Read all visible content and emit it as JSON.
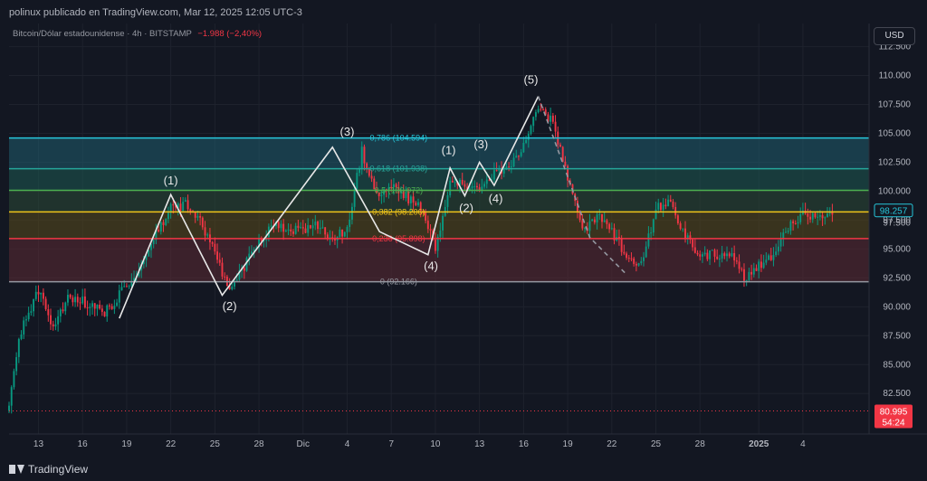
{
  "header": {
    "attribution": "polinux publicado en TradingView.com, Mar 12, 2025 12:05 UTC-3"
  },
  "symbol": {
    "name": "Bitcoin/Dólar estadounidense · 4h · BITSTAMP",
    "change": "−1.988 (−2,40%)"
  },
  "currency_button": "USD",
  "footer": {
    "brand": "TradingView"
  },
  "colors": {
    "background": "#131722",
    "up": "#089981",
    "down": "#f23645",
    "fib_0786": "#26c6da",
    "fib_0618": "#26a69a",
    "fib_05": "#4caf50",
    "fib_0382": "#f0c419",
    "fib_0236": "#f23645",
    "fib_0": "#9598a1"
  },
  "chart_data": {
    "type": "candlestick",
    "y_axis": {
      "range": [
        79000,
        114500
      ],
      "ticks": [
        "112.500",
        "110.000",
        "107.500",
        "105.000",
        "102.500",
        "100.000",
        "97.500",
        "95.000",
        "92.500",
        "90.000",
        "87.500",
        "85.000",
        "82.500"
      ],
      "tick_values": [
        112500,
        110000,
        107500,
        105000,
        102500,
        100000,
        97500,
        95000,
        92500,
        90000,
        87500,
        85000,
        82500
      ]
    },
    "x_axis": {
      "range": [
        0,
        58.5
      ],
      "ticks": [
        {
          "label": "13",
          "x": 2
        },
        {
          "label": "16",
          "x": 5
        },
        {
          "label": "19",
          "x": 8
        },
        {
          "label": "22",
          "x": 11
        },
        {
          "label": "25",
          "x": 14
        },
        {
          "label": "28",
          "x": 17
        },
        {
          "label": "Dic",
          "x": 20
        },
        {
          "label": "4",
          "x": 23
        },
        {
          "label": "7",
          "x": 26
        },
        {
          "label": "10",
          "x": 29
        },
        {
          "label": "13",
          "x": 32
        },
        {
          "label": "16",
          "x": 35
        },
        {
          "label": "19",
          "x": 38
        },
        {
          "label": "22",
          "x": 41
        },
        {
          "label": "25",
          "x": 44
        },
        {
          "label": "28",
          "x": 47
        },
        {
          "label": "2025",
          "x": 51
        },
        {
          "label": "4",
          "x": 54
        }
      ]
    },
    "price_labels": [
      {
        "value": "98.257",
        "price": 98257,
        "kind": "current"
      },
      {
        "value": "97.500",
        "price": 97500,
        "kind": "tick"
      },
      {
        "value": "80.995",
        "price": 80995,
        "kind": "low"
      },
      {
        "value": "54:24",
        "price": 80995,
        "kind": "countdown"
      }
    ],
    "fib_levels": [
      {
        "label": "0,786 (104.594)",
        "price": 104594,
        "color": "#26c6da"
      },
      {
        "label": "0,618 (101.938)",
        "price": 101938,
        "color": "#26a69a"
      },
      {
        "label": "0,5 (100.072)",
        "price": 100072,
        "color": "#4caf50"
      },
      {
        "label": "0,382 (98.206)",
        "price": 98206,
        "color": "#f0c419"
      },
      {
        "label": "0,236 (95.898)",
        "price": 95898,
        "color": "#f23645"
      },
      {
        "label": "0 (92.166)",
        "price": 92166,
        "color": "#9598a1"
      }
    ],
    "anchors": [
      {
        "x": 0,
        "p": 81000
      },
      {
        "x": 0.5,
        "p": 86000
      },
      {
        "x": 1,
        "p": 88500
      },
      {
        "x": 2,
        "p": 91500
      },
      {
        "x": 3,
        "p": 88000
      },
      {
        "x": 4,
        "p": 91000
      },
      {
        "x": 5,
        "p": 90500
      },
      {
        "x": 6.5,
        "p": 89500
      },
      {
        "x": 7.5,
        "p": 91000
      },
      {
        "x": 9,
        "p": 93500
      },
      {
        "x": 10,
        "p": 96500
      },
      {
        "x": 11,
        "p": 98500
      },
      {
        "x": 12,
        "p": 98800
      },
      {
        "x": 13,
        "p": 97500
      },
      {
        "x": 14,
        "p": 94500
      },
      {
        "x": 15,
        "p": 91500
      },
      {
        "x": 16,
        "p": 93500
      },
      {
        "x": 17,
        "p": 95500
      },
      {
        "x": 18,
        "p": 97000
      },
      {
        "x": 19,
        "p": 96500
      },
      {
        "x": 20,
        "p": 96800
      },
      {
        "x": 21,
        "p": 97000
      },
      {
        "x": 22,
        "p": 96000
      },
      {
        "x": 23,
        "p": 96500
      },
      {
        "x": 24,
        "p": 103500
      },
      {
        "x": 25,
        "p": 99500
      },
      {
        "x": 26,
        "p": 100500
      },
      {
        "x": 27,
        "p": 99500
      },
      {
        "x": 28,
        "p": 98500
      },
      {
        "x": 29,
        "p": 95000
      },
      {
        "x": 30,
        "p": 101000
      },
      {
        "x": 31,
        "p": 100500
      },
      {
        "x": 32,
        "p": 100000
      },
      {
        "x": 33,
        "p": 101500
      },
      {
        "x": 34,
        "p": 102000
      },
      {
        "x": 35,
        "p": 104000
      },
      {
        "x": 36,
        "p": 107000
      },
      {
        "x": 37,
        "p": 106000
      },
      {
        "x": 38,
        "p": 101000
      },
      {
        "x": 39,
        "p": 96500
      },
      {
        "x": 40,
        "p": 97800
      },
      {
        "x": 41,
        "p": 96500
      },
      {
        "x": 42,
        "p": 94500
      },
      {
        "x": 43,
        "p": 93500
      },
      {
        "x": 44,
        "p": 98500
      },
      {
        "x": 45,
        "p": 99000
      },
      {
        "x": 46,
        "p": 96000
      },
      {
        "x": 47,
        "p": 94500
      },
      {
        "x": 48,
        "p": 94500
      },
      {
        "x": 49,
        "p": 94800
      },
      {
        "x": 50,
        "p": 92500
      },
      {
        "x": 51,
        "p": 93500
      },
      {
        "x": 52,
        "p": 94500
      },
      {
        "x": 53,
        "p": 97000
      },
      {
        "x": 54,
        "p": 98000
      },
      {
        "x": 55,
        "p": 98000
      },
      {
        "x": 56,
        "p": 98257
      }
    ],
    "wave_lines": [
      {
        "points": [
          [
            7.5,
            89000
          ],
          [
            11,
            99700
          ],
          [
            14.5,
            91000
          ],
          [
            22,
            103800
          ],
          [
            25.2,
            96500
          ],
          [
            28.5,
            94500
          ],
          [
            30,
            102000
          ],
          [
            31,
            99600
          ],
          [
            32,
            102500
          ],
          [
            33,
            100500
          ],
          [
            36,
            108200
          ]
        ]
      }
    ],
    "wave_dashed": [
      [
        36,
        108200
      ],
      [
        37.5,
        103000
      ],
      [
        39.5,
        96000
      ],
      [
        42,
        92800
      ]
    ],
    "wave_labels": [
      {
        "text": "(1)",
        "x": 11,
        "p": 100600
      },
      {
        "text": "(2)",
        "x": 15,
        "p": 89700
      },
      {
        "text": "(3)",
        "x": 23,
        "p": 104800
      },
      {
        "text": "(4)",
        "x": 28.7,
        "p": 93200
      },
      {
        "text": "(5)",
        "x": 35.5,
        "p": 109300
      },
      {
        "text": "(1)",
        "x": 29.9,
        "p": 103200
      },
      {
        "text": "(2)",
        "x": 31.1,
        "p": 98200
      },
      {
        "text": "(3)",
        "x": 32.1,
        "p": 103700
      },
      {
        "text": "(4)",
        "x": 33.1,
        "p": 99000
      }
    ]
  }
}
